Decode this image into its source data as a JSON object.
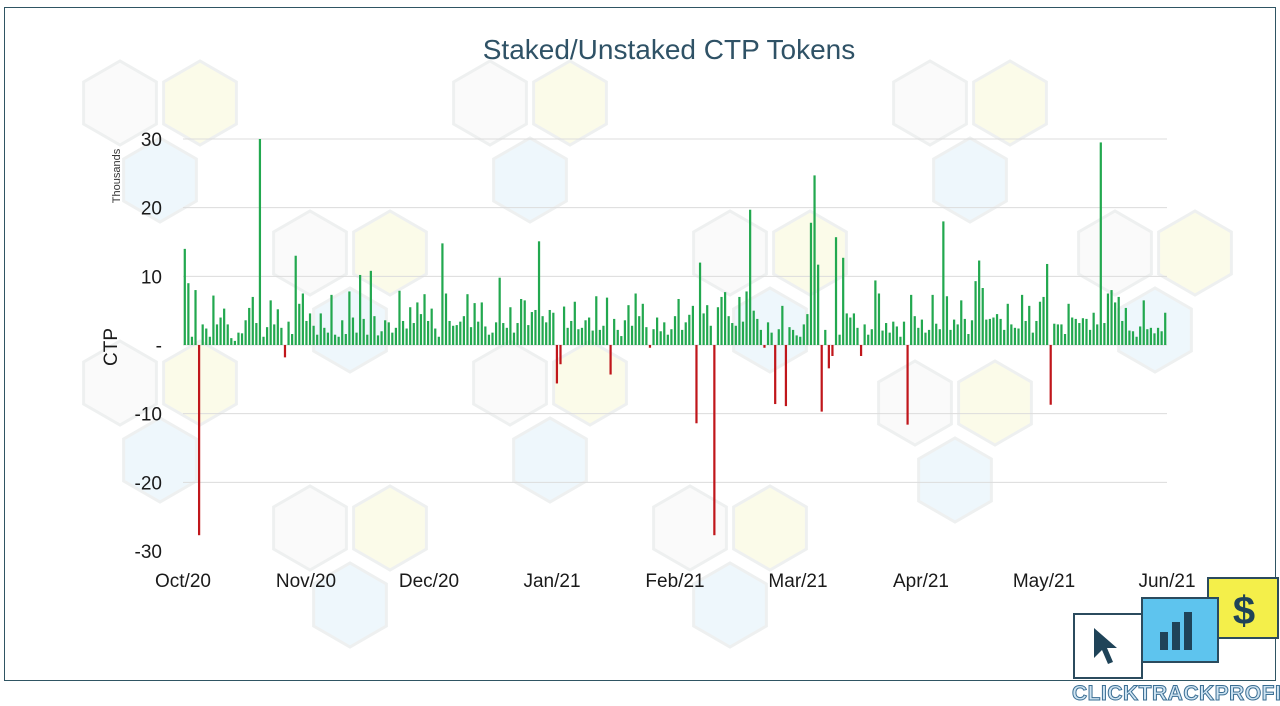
{
  "chart_data": {
    "type": "bar",
    "title": "Staked/Unstaked CTP Tokens",
    "ylabel": "CTP",
    "yunit_label": "Thousands",
    "ylim": [
      -30,
      30
    ],
    "ytick_values": [
      30,
      20,
      10,
      0,
      -10,
      -20,
      -30
    ],
    "ytick_labels": [
      "30",
      "20",
      "10",
      "-",
      "-10",
      "-20",
      "-30"
    ],
    "x_month_labels": [
      "Oct/20",
      "Nov/20",
      "Dec/20",
      "Jan/21",
      "Feb/21",
      "Mar/21",
      "Apr/21",
      "May/21",
      "Jun/21"
    ],
    "positive_color": "#22a84f",
    "negative_color": "#c0161b",
    "series": [
      {
        "name": "Staked/Unstaked CTP (thousands)",
        "values": [
          14,
          9,
          1.2,
          8,
          -27.7,
          3,
          2.4,
          1.2,
          7.2,
          3,
          4,
          5.3,
          3,
          1,
          0.6,
          1.8,
          1.7,
          3.6,
          5.4,
          7,
          3.2,
          30,
          1.2,
          2.6,
          6.5,
          3,
          5.2,
          2.5,
          -1.8,
          3.4,
          1.6,
          13,
          6,
          7.5,
          3.5,
          4.6,
          2.8,
          1.5,
          4.6,
          2.5,
          1.8,
          7.3,
          1.5,
          1.2,
          3.6,
          1.6,
          7.8,
          4,
          1.8,
          10.2,
          3.8,
          1.5,
          10.8,
          4.2,
          1.4,
          2,
          3.6,
          3.3,
          1.8,
          2.5,
          7.9,
          3.5,
          2.4,
          5.5,
          3.2,
          6.2,
          4.5,
          7.4,
          3.5,
          5.3,
          2.4,
          1.2,
          14.8,
          7.5,
          3.5,
          2.8,
          2.9,
          3.4,
          4.2,
          7.4,
          2.6,
          6.1,
          3.4,
          6.2,
          2.7,
          1.5,
          1.8,
          3.3,
          9.8,
          3.2,
          2.5,
          5.5,
          1.8,
          3.2,
          6.7,
          6.5,
          2.9,
          4.8,
          5.1,
          15.1,
          4.2,
          3.3,
          5.1,
          4.7,
          -5.6,
          -2.8,
          5.6,
          2.5,
          3.5,
          6.3,
          2.3,
          2.5,
          3.6,
          4,
          2.1,
          7.1,
          2.2,
          2.8,
          6.9,
          -4.3,
          3.8,
          2.2,
          1.3,
          3.6,
          5.8,
          2.8,
          7.5,
          4.2,
          6,
          2.6,
          -0.4,
          2.3,
          4,
          2,
          3.3,
          1.5,
          2.3,
          4.2,
          6.7,
          2.2,
          3.3,
          4.4,
          5.7,
          -11.4,
          12,
          4.6,
          5.8,
          2.8,
          -27.7,
          5.5,
          7,
          7.7,
          4.2,
          3.2,
          2.8,
          7,
          3.4,
          7.8,
          19.7,
          5,
          3.8,
          2.2,
          -0.4,
          3.3,
          1.8,
          -8.6,
          2.3,
          5.7,
          -8.9,
          2.6,
          2.2,
          1.4,
          1.2,
          3,
          4.5,
          17.8,
          24.7,
          11.7,
          -9.7,
          2.2,
          -3.4,
          -1.6,
          15.7,
          1.5,
          12.7,
          4.6,
          4,
          4.6,
          2.5,
          -1.6,
          3,
          1.5,
          2.3,
          9.4,
          7.5,
          2.1,
          3.2,
          1.8,
          3.4,
          2.7,
          1.2,
          3.4,
          -11.6,
          7.3,
          4.2,
          2.5,
          3.7,
          1.8,
          2.2,
          7.3,
          3.1,
          2.3,
          18,
          7.1,
          2.2,
          3.7,
          3,
          6.5,
          3.8,
          1.6,
          3.6,
          9.3,
          12.3,
          8.3,
          3.7,
          3.8,
          4,
          4.5,
          3.8,
          2.2,
          6,
          3,
          2.5,
          2.4,
          7.3,
          3.5,
          5.7,
          1.8,
          3.5,
          6.3,
          7,
          11.8,
          -8.7,
          3.1,
          3,
          3,
          1.6,
          6,
          4,
          3.8,
          3.2,
          3.9,
          3.8,
          2.2,
          4.7,
          3,
          29.5,
          3.2,
          7.5,
          8,
          6.2,
          7,
          3.5,
          5.4,
          2.1,
          2,
          1.2,
          2.7,
          6.5,
          2.3,
          2.5,
          1.7,
          2.5,
          2,
          4.7
        ]
      }
    ]
  }
}
